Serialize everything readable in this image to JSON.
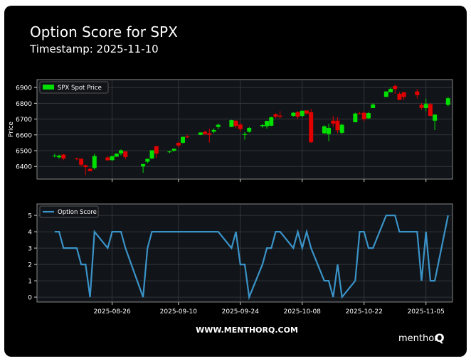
{
  "header": {
    "title": "Option Score for SPX",
    "subtitle": "Timestamp: 2025-11-10"
  },
  "footer": {
    "website": "WWW.MENTHORQ.COM",
    "logo": "menthor",
    "logo_mark": "Q"
  },
  "chart_data": [
    {
      "type": "candlestick",
      "y_label": "Price",
      "legend": "upper left",
      "grid": true,
      "series": [
        {
          "name": "SPX Spot Price",
          "color": "#00e000",
          "down_color": "#e00000"
        }
      ],
      "x": [
        "2025-08-13",
        "2025-08-14",
        "2025-08-15",
        "2025-08-18",
        "2025-08-19",
        "2025-08-20",
        "2025-08-21",
        "2025-08-22",
        "2025-08-25",
        "2025-08-26",
        "2025-08-27",
        "2025-08-28",
        "2025-08-29",
        "2025-09-02",
        "2025-09-03",
        "2025-09-04",
        "2025-09-05",
        "2025-09-08",
        "2025-09-09",
        "2025-09-10",
        "2025-09-11",
        "2025-09-12",
        "2025-09-15",
        "2025-09-16",
        "2025-09-17",
        "2025-09-18",
        "2025-09-19",
        "2025-09-22",
        "2025-09-23",
        "2025-09-24",
        "2025-09-25",
        "2025-09-26",
        "2025-09-29",
        "2025-09-30",
        "2025-10-01",
        "2025-10-02",
        "2025-10-03",
        "2025-10-06",
        "2025-10-07",
        "2025-10-08",
        "2025-10-09",
        "2025-10-10",
        "2025-10-13",
        "2025-10-14",
        "2025-10-15",
        "2025-10-16",
        "2025-10-17",
        "2025-10-20",
        "2025-10-21",
        "2025-10-22",
        "2025-10-23",
        "2025-10-24",
        "2025-10-27",
        "2025-10-28",
        "2025-10-29",
        "2025-10-30",
        "2025-10-31",
        "2025-11-03",
        "2025-11-04",
        "2025-11-05",
        "2025-11-06",
        "2025-11-07",
        "2025-11-10"
      ],
      "open": [
        6466,
        6458,
        6475,
        6450,
        6448,
        6408,
        6385,
        6390,
        6457,
        6440,
        6462,
        6483,
        6495,
        6400,
        6430,
        6450,
        6528,
        6490,
        6500,
        6550,
        6550,
        6590,
        6600,
        6620,
        6610,
        6620,
        6650,
        6650,
        6690,
        6665,
        6600,
        6620,
        6655,
        6655,
        6658,
        6731,
        6722,
        6720,
        6745,
        6720,
        6755,
        6743,
        6610,
        6605,
        6690,
        6690,
        6613,
        6680,
        6736,
        6740,
        6705,
        6770,
        6840,
        6870,
        6910,
        6860,
        6870,
        6875,
        6790,
        6770,
        6795,
        6690,
        6790
      ],
      "high": [
        6480,
        6475,
        6480,
        6456,
        6452,
        6412,
        6390,
        6480,
        6466,
        6468,
        6483,
        6508,
        6497,
        6416,
        6450,
        6503,
        6532,
        6500,
        6513,
        6555,
        6590,
        6600,
        6616,
        6627,
        6639,
        6642,
        6671,
        6695,
        6692,
        6675,
        6617,
        6650,
        6670,
        6690,
        6715,
        6736,
        6750,
        6744,
        6749,
        6753,
        6755,
        6764,
        6660,
        6670,
        6720,
        6712,
        6670,
        6740,
        6745,
        6750,
        6745,
        6800,
        6875,
        6899,
        6920,
        6870,
        6870,
        6890,
        6800,
        6830,
        6800,
        6730,
        6840
      ],
      "low": [
        6458,
        6450,
        6440,
        6440,
        6400,
        6345,
        6370,
        6380,
        6437,
        6435,
        6460,
        6470,
        6445,
        6360,
        6420,
        6447,
        6454,
        6485,
        6493,
        6520,
        6545,
        6580,
        6598,
        6598,
        6551,
        6610,
        6637,
        6650,
        6642,
        6620,
        6570,
        6614,
        6646,
        6640,
        6655,
        6706,
        6705,
        6715,
        6700,
        6710,
        6727,
        6550,
        6605,
        6560,
        6650,
        6610,
        6605,
        6679,
        6731,
        6685,
        6700,
        6770,
        6840,
        6870,
        6860,
        6820,
        6820,
        6830,
        6760,
        6750,
        6720,
        6630,
        6780
      ],
      "close": [
        6468,
        6468,
        6450,
        6449,
        6411,
        6396,
        6370,
        6466,
        6439,
        6465,
        6481,
        6502,
        6460,
        6415,
        6448,
        6502,
        6481,
        6495,
        6512,
        6532,
        6587,
        6584,
        6615,
        6606,
        6600,
        6631,
        6664,
        6693,
        6656,
        6637,
        6605,
        6644,
        6662,
        6688,
        6711,
        6715,
        6715,
        6740,
        6714,
        6753,
        6735,
        6553,
        6654,
        6644,
        6671,
        6629,
        6664,
        6735,
        6735,
        6699,
        6738,
        6792,
        6875,
        6891,
        6890,
        6822,
        6840,
        6851,
        6771,
        6796,
        6720,
        6728,
        6832
      ],
      "xlim": [
        "2025-08-09",
        "2025-11-11"
      ],
      "ylim": [
        6320,
        6950
      ],
      "yticks": [
        6400,
        6500,
        6600,
        6700,
        6800,
        6900
      ]
    },
    {
      "type": "line",
      "legend": "upper left",
      "grid": true,
      "series": [
        {
          "name": "Option Score",
          "color": "#3a93c8",
          "values": [
            4,
            4,
            3,
            3,
            2,
            2,
            0,
            4,
            3,
            4,
            4,
            4,
            3,
            0,
            3,
            4,
            4,
            4,
            4,
            4,
            4,
            4,
            4,
            4,
            4,
            4,
            4,
            3,
            4,
            2,
            2,
            0,
            2,
            3,
            3,
            4,
            4,
            3,
            4,
            3,
            4,
            3,
            1,
            1,
            0,
            2,
            0,
            1,
            4,
            4,
            3,
            3,
            5,
            5,
            5,
            4,
            4,
            4,
            1,
            4,
            1,
            1,
            5
          ]
        }
      ],
      "xlim": [
        "2025-08-09",
        "2025-11-11"
      ],
      "xticks": [
        "2025-08-26",
        "2025-09-10",
        "2025-09-24",
        "2025-10-08",
        "2025-10-22",
        "2025-11-05"
      ],
      "ylim": [
        -0.3,
        5.7
      ],
      "yticks": [
        0,
        1,
        2,
        3,
        4,
        5
      ]
    }
  ]
}
